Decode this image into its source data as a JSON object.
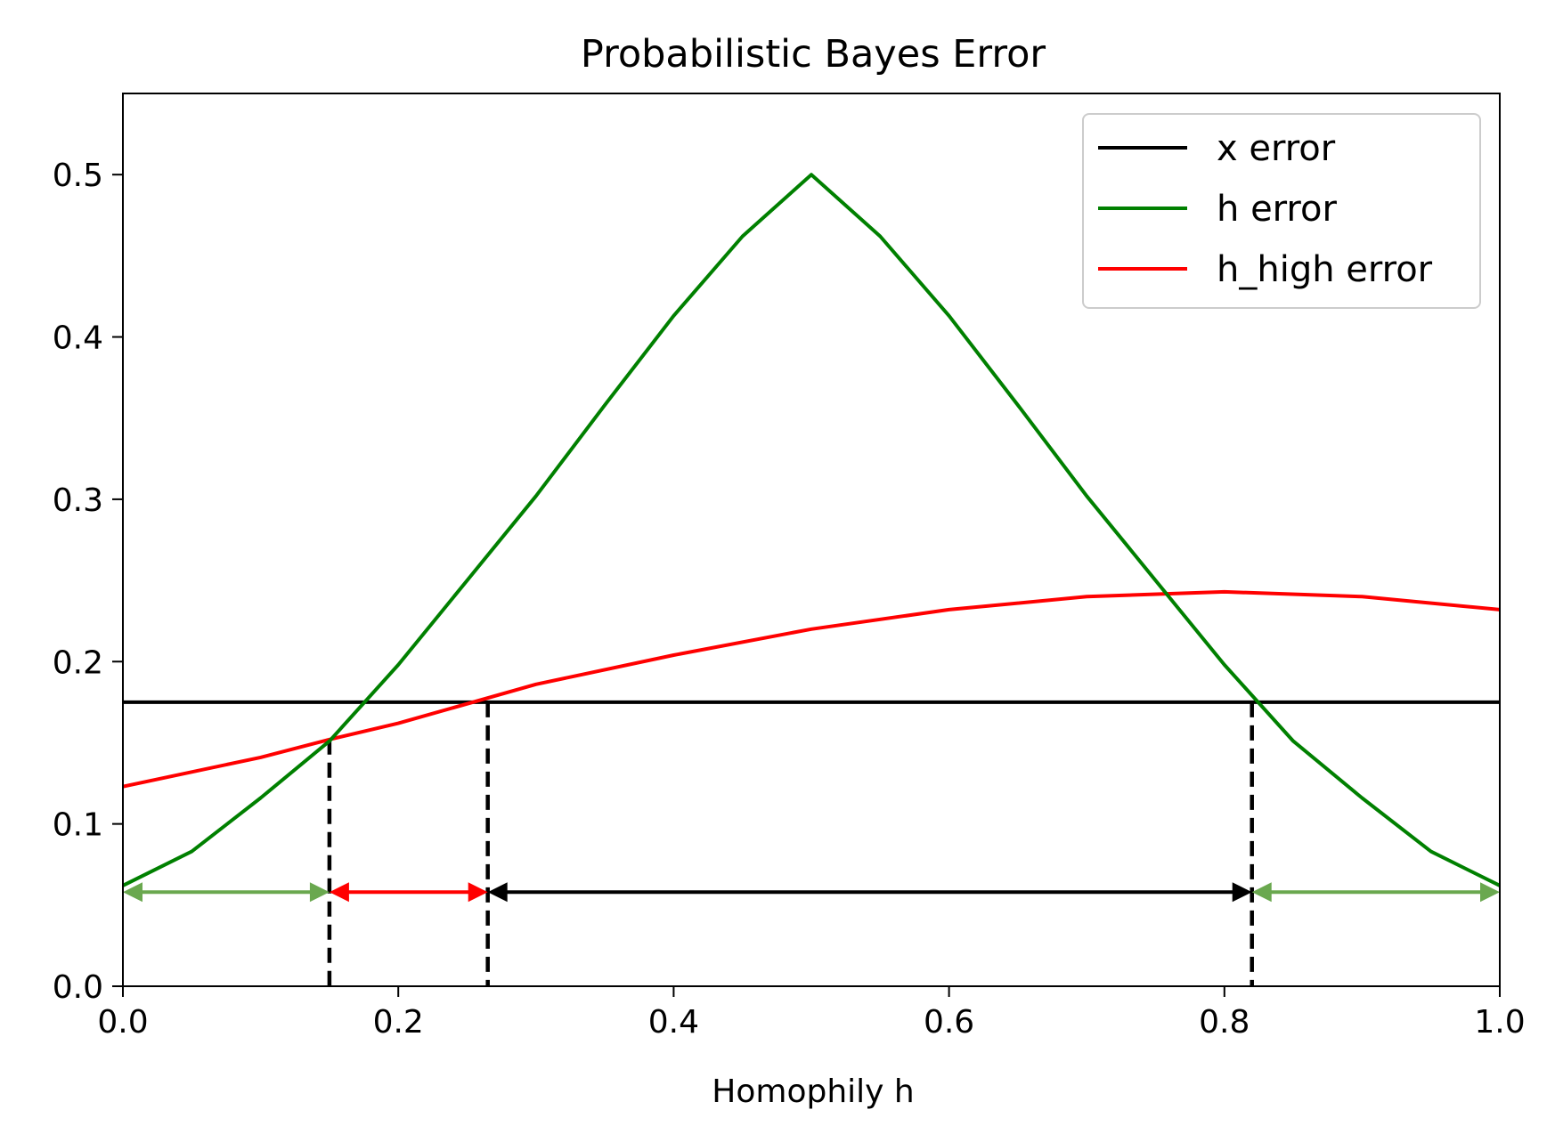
{
  "chart_data": {
    "type": "line",
    "title": "Probabilistic Bayes Error",
    "xlabel": "Homophily h",
    "ylabel": "",
    "xlim": [
      0.0,
      1.0
    ],
    "ylim": [
      0.0,
      0.55
    ],
    "xticks": [
      "0.0",
      "0.2",
      "0.4",
      "0.6",
      "0.8",
      "1.0"
    ],
    "xtick_values": [
      0.0,
      0.2,
      0.4,
      0.6,
      0.8,
      1.0
    ],
    "yticks": [
      "0.0",
      "0.1",
      "0.2",
      "0.3",
      "0.4",
      "0.5"
    ],
    "ytick_values": [
      0.0,
      0.1,
      0.2,
      0.3,
      0.4,
      0.5
    ],
    "grid": false,
    "legend_position": "top-right",
    "series": [
      {
        "name": "x error",
        "color": "#000000",
        "x": [
          0.0,
          1.0
        ],
        "y": [
          0.175,
          0.175
        ]
      },
      {
        "name": "h error",
        "color": "#008000",
        "x": [
          0.0,
          0.05,
          0.1,
          0.15,
          0.2,
          0.25,
          0.3,
          0.35,
          0.4,
          0.45,
          0.5,
          0.55,
          0.6,
          0.65,
          0.7,
          0.75,
          0.8,
          0.85,
          0.9,
          0.95,
          1.0
        ],
        "y": [
          0.062,
          0.083,
          0.116,
          0.151,
          0.198,
          0.25,
          0.302,
          0.358,
          0.413,
          0.462,
          0.5,
          0.462,
          0.413,
          0.358,
          0.302,
          0.25,
          0.198,
          0.151,
          0.116,
          0.083,
          0.062
        ]
      },
      {
        "name": "h_high error",
        "color": "#ff0000",
        "x": [
          0.0,
          0.1,
          0.15,
          0.2,
          0.3,
          0.4,
          0.5,
          0.6,
          0.7,
          0.8,
          0.9,
          1.0
        ],
        "y": [
          0.123,
          0.141,
          0.152,
          0.162,
          0.186,
          0.204,
          0.22,
          0.232,
          0.24,
          0.243,
          0.24,
          0.232
        ]
      }
    ],
    "vlines": [
      0.15,
      0.265,
      0.82
    ],
    "vline_top": [
      0.152,
      0.175,
      0.175
    ],
    "arrows": [
      {
        "from": 0.0,
        "to": 0.15,
        "y": 0.058,
        "color": "#6aa84f"
      },
      {
        "from": 0.15,
        "to": 0.265,
        "y": 0.058,
        "color": "#ff0000"
      },
      {
        "from": 0.265,
        "to": 0.82,
        "y": 0.058,
        "color": "#000000"
      },
      {
        "from": 0.82,
        "to": 1.0,
        "y": 0.058,
        "color": "#6aa84f"
      }
    ]
  }
}
